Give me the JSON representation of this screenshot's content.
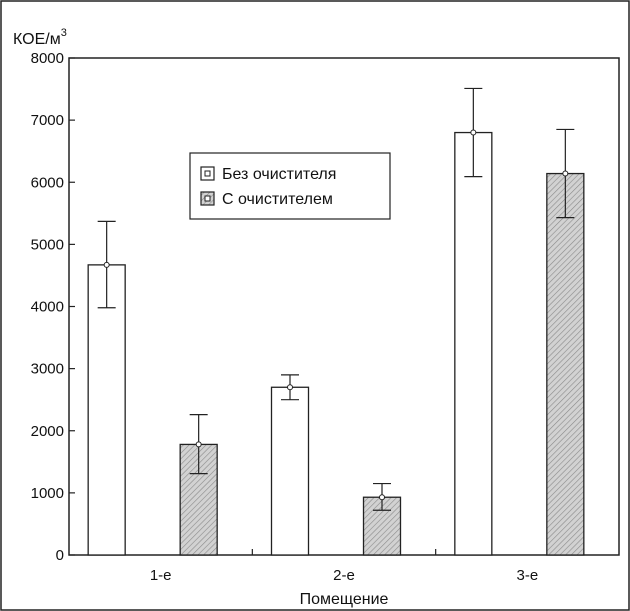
{
  "chart_data": {
    "type": "bar",
    "title": "",
    "ylabel": "КОЕ/м",
    "ylabel_sup": "3",
    "xlabel": "Помещение",
    "categories": [
      "1-е",
      "2-е",
      "3-е"
    ],
    "ylim": [
      0,
      8000
    ],
    "yticks": [
      0,
      1000,
      2000,
      3000,
      4000,
      5000,
      6000,
      7000,
      8000
    ],
    "grid": false,
    "legend_position": "center-left",
    "series": [
      {
        "name": "Без очистителя",
        "fill": "#ffffff",
        "values": [
          4670,
          2700,
          6800
        ],
        "error": [
          [
            3980,
            5370
          ],
          [
            2500,
            2900
          ],
          [
            6090,
            7510
          ]
        ]
      },
      {
        "name": "С очистителем",
        "fill": "#c8c8c8",
        "hatched": true,
        "values": [
          1780,
          930,
          6140
        ],
        "error": [
          [
            1310,
            2260
          ],
          [
            720,
            1150
          ],
          [
            5430,
            6850
          ]
        ]
      }
    ]
  }
}
